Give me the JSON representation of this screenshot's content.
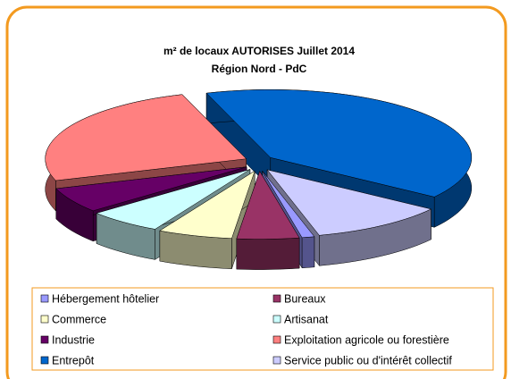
{
  "chart_data": {
    "type": "pie",
    "title": "m² de locaux AUTORISES Juillet 2014",
    "subtitle": "Région Nord - PdC",
    "categories": [
      "Hébergement hôtelier",
      "Bureaux",
      "Commerce",
      "Artisanat",
      "Industrie",
      "Exploitation agricole ou forestière",
      "Entrepôt",
      "Service public ou d'intérêt collectif"
    ],
    "values": [
      1,
      5,
      6,
      6,
      6,
      25,
      40,
      11
    ],
    "colors": [
      "#9999ff",
      "#993366",
      "#ffffcc",
      "#ccffff",
      "#660066",
      "#ff8080",
      "#0066cc",
      "#ccccff"
    ],
    "legend": "bottom"
  }
}
